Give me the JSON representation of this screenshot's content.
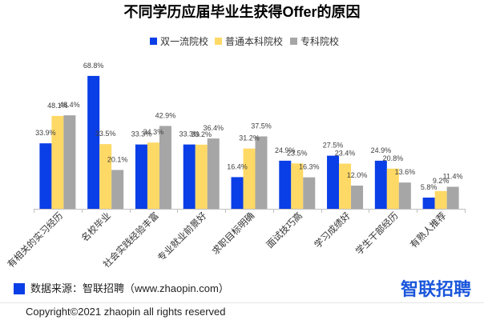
{
  "chart_data": {
    "type": "bar",
    "title": "不同学历应届毕业生获得Offer的原因",
    "categories": [
      "有相关的实习经历",
      "名校毕业",
      "社会实践经验丰富",
      "专业就业前景好",
      "求职目标明确",
      "面试技巧高",
      "学习成绩好",
      "学生干部经历",
      "有熟人推荐"
    ],
    "series": [
      {
        "name": "双一流院校",
        "color": "#0a3ee6",
        "values": [
          33.9,
          68.8,
          33.3,
          33.3,
          16.4,
          24.9,
          27.5,
          24.9,
          5.8
        ]
      },
      {
        "name": "普通本科院校",
        "color": "#ffd966",
        "values": [
          48.1,
          33.5,
          34.3,
          33.2,
          31.2,
          23.5,
          23.4,
          20.8,
          9.2
        ]
      },
      {
        "name": "专科院校",
        "color": "#a6a6a6",
        "values": [
          48.4,
          20.1,
          42.9,
          36.4,
          37.5,
          16.3,
          12.0,
          13.6,
          11.4
        ]
      }
    ],
    "value_suffix": "%",
    "ylim": [
      0,
      70
    ],
    "grid": false
  },
  "footer": {
    "source_text": "数据来源：智联招聘（www.zhaopin.com）",
    "logo_text": "智联招聘",
    "copyright": "Copyright©2021 zhaopin all rights reserved",
    "accent_color": "#0a3ee6",
    "logo_color": "#1a56db"
  }
}
